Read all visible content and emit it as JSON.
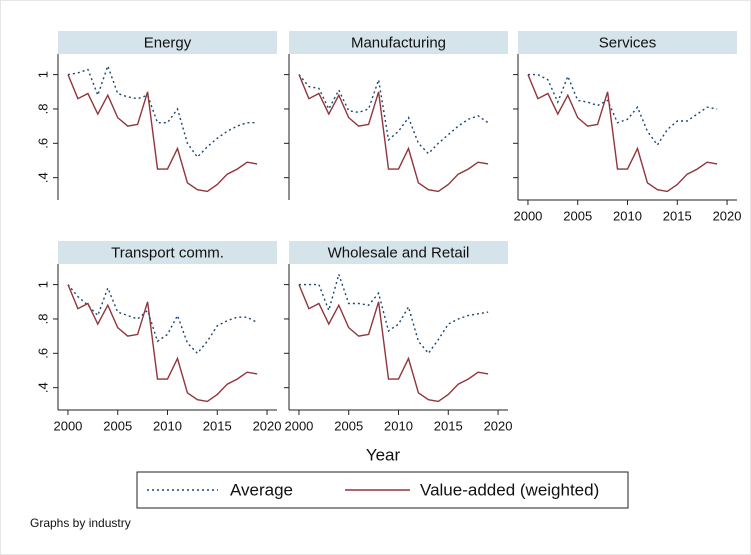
{
  "chart_data": {
    "type": "line",
    "x_label": "Year",
    "note": "Graphs by industry",
    "x": [
      2000,
      2001,
      2002,
      2003,
      2004,
      2005,
      2006,
      2007,
      2008,
      2009,
      2010,
      2011,
      2012,
      2013,
      2014,
      2015,
      2016,
      2017,
      2018,
      2019
    ],
    "xlim": [
      1999,
      2021
    ],
    "xticks": [
      2000,
      2005,
      2010,
      2015,
      2020
    ],
    "ylim": [
      0.27,
      1.12
    ],
    "yticks": [
      {
        "value": 0.4,
        "label": ".4"
      },
      {
        "value": 0.6,
        "label": ".6"
      },
      {
        "value": 0.8,
        "label": ".8"
      },
      1
    ],
    "series": [
      {
        "name": "Average",
        "color": "#1a476f",
        "dash": "dotted"
      },
      {
        "name": "Value-added (weighted)",
        "color": "#90353b",
        "dash": "solid"
      }
    ],
    "panels": [
      {
        "title": "Energy",
        "values": [
          [
            1.0,
            1.01,
            1.03,
            0.88,
            1.05,
            0.89,
            0.87,
            0.86,
            0.88,
            0.72,
            0.72,
            0.8,
            0.6,
            0.52,
            0.58,
            0.63,
            0.67,
            0.7,
            0.72,
            0.72
          ],
          [
            1.0,
            0.86,
            0.89,
            0.77,
            0.88,
            0.75,
            0.7,
            0.71,
            0.9,
            0.45,
            0.45,
            0.57,
            0.37,
            0.33,
            0.32,
            0.36,
            0.42,
            0.45,
            0.49,
            0.48
          ]
        ]
      },
      {
        "title": "Manufacturing",
        "values": [
          [
            1.0,
            0.93,
            0.92,
            0.8,
            0.91,
            0.79,
            0.78,
            0.8,
            0.97,
            0.62,
            0.67,
            0.75,
            0.6,
            0.54,
            0.6,
            0.65,
            0.7,
            0.74,
            0.76,
            0.72
          ],
          [
            1.0,
            0.86,
            0.89,
            0.77,
            0.88,
            0.75,
            0.7,
            0.71,
            0.9,
            0.45,
            0.45,
            0.57,
            0.37,
            0.33,
            0.32,
            0.36,
            0.42,
            0.45,
            0.49,
            0.48
          ]
        ]
      },
      {
        "title": "Services",
        "values": [
          [
            1.0,
            1.0,
            0.97,
            0.84,
            0.99,
            0.85,
            0.84,
            0.82,
            0.85,
            0.72,
            0.74,
            0.81,
            0.67,
            0.59,
            0.68,
            0.73,
            0.73,
            0.77,
            0.81,
            0.8
          ],
          [
            1.0,
            0.86,
            0.89,
            0.77,
            0.88,
            0.75,
            0.7,
            0.71,
            0.9,
            0.45,
            0.45,
            0.57,
            0.37,
            0.33,
            0.32,
            0.36,
            0.42,
            0.45,
            0.49,
            0.48
          ]
        ]
      },
      {
        "title": "Transport comm.",
        "values": [
          [
            1.0,
            0.93,
            0.88,
            0.82,
            0.98,
            0.84,
            0.82,
            0.8,
            0.85,
            0.67,
            0.71,
            0.82,
            0.66,
            0.6,
            0.67,
            0.76,
            0.79,
            0.81,
            0.81,
            0.78
          ],
          [
            1.0,
            0.86,
            0.89,
            0.77,
            0.88,
            0.75,
            0.7,
            0.71,
            0.9,
            0.45,
            0.45,
            0.57,
            0.37,
            0.33,
            0.32,
            0.36,
            0.42,
            0.45,
            0.49,
            0.48
          ]
        ]
      },
      {
        "title": "Wholesale and Retail",
        "values": [
          [
            1.0,
            1.0,
            1.0,
            0.85,
            1.06,
            0.89,
            0.89,
            0.88,
            0.95,
            0.73,
            0.77,
            0.87,
            0.67,
            0.6,
            0.68,
            0.77,
            0.8,
            0.82,
            0.83,
            0.84
          ],
          [
            1.0,
            0.86,
            0.89,
            0.77,
            0.88,
            0.75,
            0.7,
            0.71,
            0.9,
            0.45,
            0.45,
            0.57,
            0.37,
            0.33,
            0.32,
            0.36,
            0.42,
            0.45,
            0.49,
            0.48
          ]
        ]
      }
    ]
  }
}
